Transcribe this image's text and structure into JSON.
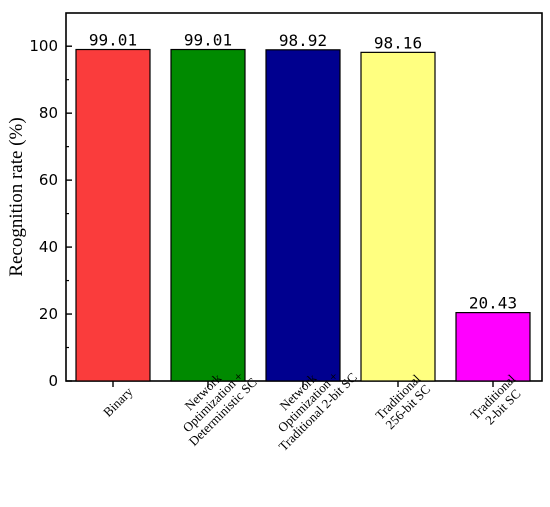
{
  "chart_data": {
    "type": "bar",
    "title": "",
    "xlabel": "",
    "ylabel": "Recognition rate (%)",
    "ylim": [
      0,
      110
    ],
    "yticks": [
      0,
      20,
      40,
      60,
      80,
      100
    ],
    "grid": false,
    "categories": [
      [
        "Binary"
      ],
      [
        "Network",
        "Optimization +",
        "Deterministic SC"
      ],
      [
        "Network",
        "Optimization +",
        "Traditional 2-bit SC"
      ],
      [
        "Traditional",
        "256-bit SC"
      ],
      [
        "Traditional",
        "2-bit SC"
      ]
    ],
    "values": [
      99.01,
      99.01,
      98.92,
      98.16,
      20.43
    ],
    "value_labels": [
      "99.01",
      "99.01",
      "98.92",
      "98.16",
      "20.43"
    ],
    "colors": [
      "#fa3c3c",
      "#008a00",
      "#00008f",
      "#ffff80",
      "#ff00ff"
    ]
  }
}
